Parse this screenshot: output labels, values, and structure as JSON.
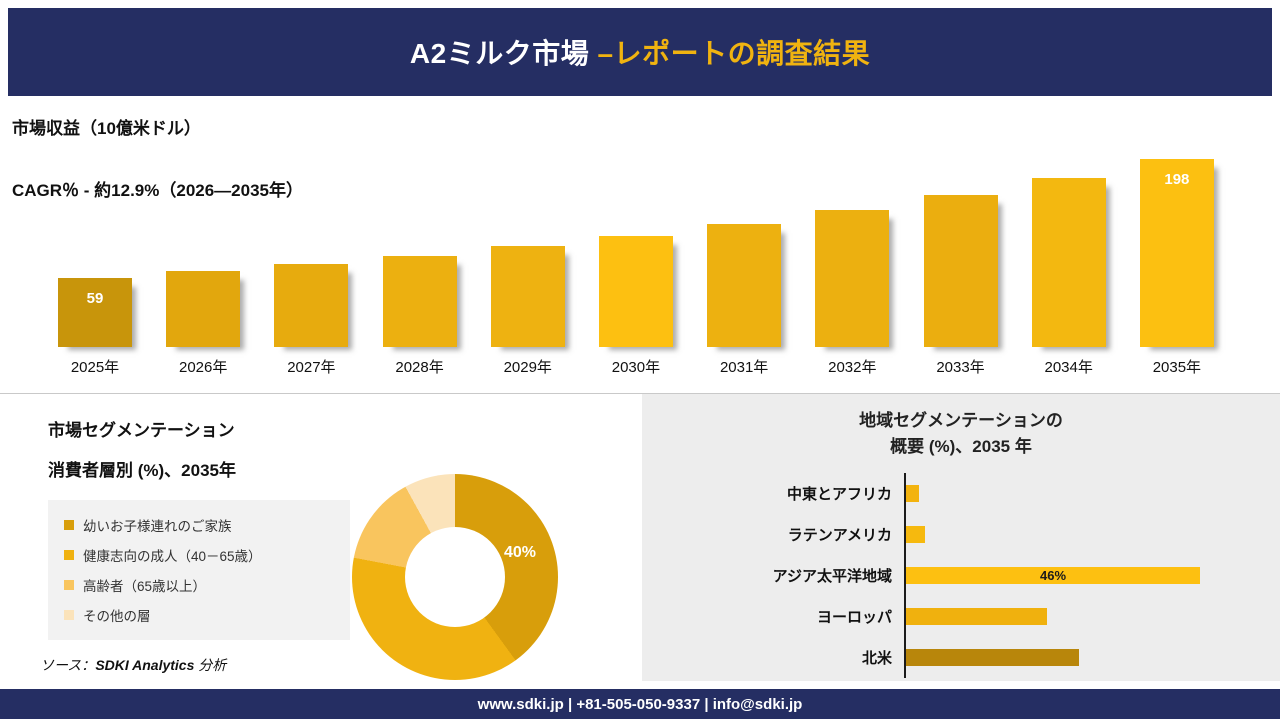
{
  "header": {
    "title_white": "A2ミルク市場 ",
    "title_gold": "–レポートの調査結果"
  },
  "revenue": {
    "title": "市場収益（10億米ドル）",
    "cagr": "CAGR％ - 約12.9%（2026―2035年）"
  },
  "segmentation": {
    "title_line1": "市場セグメンテーション",
    "title_line2": "消費者層別 (%)、2035年"
  },
  "regional": {
    "title_line1": "地域セグメンテーションの",
    "title_line2": "概要 (%)、2035 年"
  },
  "source": {
    "prefix": "ソース：",
    "name": "SDKI Analytics",
    "suffix": " 分析"
  },
  "footer": {
    "text": "www.sdki.jp | +81-505-050-9337 | info@sdki.jp"
  },
  "colors": {
    "navy": "#252e63",
    "gold_accent": "#f0b310",
    "panel_gray": "#ededed"
  },
  "chart_data": [
    {
      "type": "bar",
      "title": "市場収益（10億米ドル）",
      "subtitle": "CAGR％ - 約12.9%（2026―2035年）",
      "categories": [
        "2025年",
        "2026年",
        "2027年",
        "2028年",
        "2029年",
        "2030年",
        "2031年",
        "2032年",
        "2033年",
        "2034年",
        "2035年"
      ],
      "values": [
        59,
        67,
        75,
        85,
        96,
        108,
        122,
        138,
        156,
        176,
        198
      ],
      "shown_labels": {
        "2025年": "59",
        "2035年": "198"
      },
      "colors": [
        "#c8950b",
        "#e2a70d",
        "#e7ab0e",
        "#ecb010",
        "#eeb211",
        "#fdc011",
        "#edb110",
        "#ecb010",
        "#ebae0f",
        "#f3b810",
        "#fcc011"
      ],
      "ylim": [
        0,
        210
      ],
      "grid": false,
      "legend_position": "none",
      "xlabel": "",
      "ylabel": "市場収益（10億米ドル）"
    },
    {
      "type": "pie",
      "title": "市場セグメンテーション 消費者層別 (%)、2035年",
      "labels": [
        "幼いお子様連れのご家族",
        "健康志向の成人（40－65歳）",
        "高齢者（65歳以上）",
        "その他の層"
      ],
      "values": [
        40,
        38,
        14,
        8
      ],
      "colors": [
        "#d89e0b",
        "#f0b211",
        "#f9c55e",
        "#fbe3ba"
      ],
      "shown_label": "40%",
      "legend_position": "left"
    },
    {
      "type": "bar",
      "orientation": "horizontal",
      "title": "地域セグメンテーションの概要 (%)、2035 年",
      "categories": [
        "中東とアフリカ",
        "ラテンアメリカ",
        "アジア太平洋地域",
        "ヨーロッパ",
        "北米"
      ],
      "values": [
        2,
        3,
        46,
        22,
        27
      ],
      "shown_labels": {
        "アジア太平洋地域": "46%"
      },
      "colors": [
        "#f3b30e",
        "#f6b90e",
        "#fdc011",
        "#f0b10e",
        "#b8860b"
      ],
      "xlim": [
        0,
        50
      ],
      "grid": false
    }
  ]
}
